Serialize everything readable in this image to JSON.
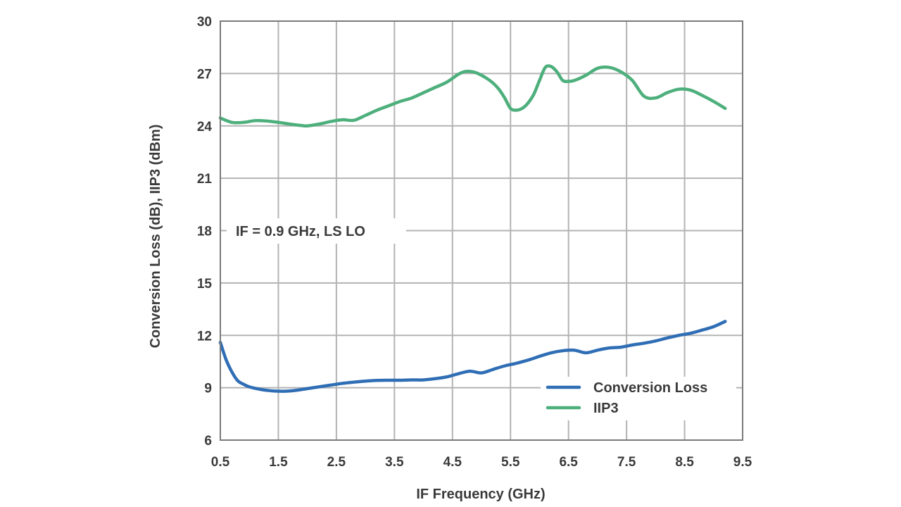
{
  "chart_data": {
    "type": "line",
    "title": "",
    "xlabel": "IF Frequency (GHz)",
    "ylabel": "Conversion Loss (dB), IIP3 (dBm)",
    "xlim": [
      0.5,
      9.5
    ],
    "ylim": [
      6,
      30
    ],
    "xticks": [
      "0.5",
      "1.5",
      "2.5",
      "3.5",
      "4.5",
      "5.5",
      "6.5",
      "7.5",
      "8.5",
      "9.5"
    ],
    "yticks": [
      "6",
      "9",
      "12",
      "15",
      "18",
      "21",
      "24",
      "27",
      "30"
    ],
    "grid": true,
    "annotation": "IF = 0.9 GHz, LS LO",
    "legend": {
      "placement": "bottom-right"
    },
    "series": [
      {
        "name": "Conversion Loss",
        "color": "#2f6eb5",
        "x": [
          0.5,
          0.6,
          0.7,
          0.8,
          0.9,
          1.0,
          1.2,
          1.4,
          1.6,
          1.8,
          2.0,
          2.2,
          2.4,
          2.6,
          2.8,
          3.0,
          3.2,
          3.4,
          3.6,
          3.8,
          4.0,
          4.2,
          4.4,
          4.6,
          4.8,
          5.0,
          5.2,
          5.4,
          5.6,
          5.8,
          6.0,
          6.2,
          6.4,
          6.6,
          6.8,
          7.0,
          7.2,
          7.4,
          7.6,
          7.8,
          8.0,
          8.2,
          8.4,
          8.6,
          8.8,
          9.0,
          9.2
        ],
        "values": [
          11.6,
          10.6,
          9.9,
          9.4,
          9.2,
          9.05,
          8.9,
          8.82,
          8.8,
          8.85,
          8.95,
          9.05,
          9.15,
          9.25,
          9.32,
          9.38,
          9.42,
          9.43,
          9.43,
          9.45,
          9.45,
          9.52,
          9.62,
          9.8,
          9.95,
          9.85,
          10.05,
          10.25,
          10.4,
          10.58,
          10.8,
          11.0,
          11.12,
          11.15,
          11.0,
          11.15,
          11.28,
          11.32,
          11.45,
          11.55,
          11.68,
          11.85,
          12.0,
          12.12,
          12.3,
          12.5,
          12.8
        ]
      },
      {
        "name": "IIP3",
        "color": "#4daf7c",
        "x": [
          0.5,
          0.7,
          0.9,
          1.1,
          1.3,
          1.5,
          1.7,
          1.9,
          2.0,
          2.2,
          2.4,
          2.6,
          2.8,
          3.0,
          3.2,
          3.4,
          3.6,
          3.8,
          4.0,
          4.2,
          4.4,
          4.6,
          4.7,
          4.8,
          4.9,
          5.0,
          5.1,
          5.2,
          5.3,
          5.4,
          5.5,
          5.6,
          5.7,
          5.8,
          5.9,
          6.0,
          6.1,
          6.2,
          6.3,
          6.4,
          6.5,
          6.6,
          6.8,
          7.0,
          7.2,
          7.4,
          7.6,
          7.8,
          8.0,
          8.2,
          8.4,
          8.6,
          8.8,
          9.0,
          9.2
        ],
        "values": [
          24.45,
          24.2,
          24.2,
          24.3,
          24.28,
          24.2,
          24.1,
          24.02,
          24.0,
          24.1,
          24.25,
          24.35,
          24.32,
          24.6,
          24.9,
          25.15,
          25.4,
          25.6,
          25.9,
          26.2,
          26.5,
          26.95,
          27.1,
          27.12,
          27.05,
          26.9,
          26.7,
          26.45,
          26.1,
          25.6,
          25.0,
          24.9,
          25.0,
          25.3,
          25.8,
          26.6,
          27.35,
          27.4,
          27.1,
          26.6,
          26.55,
          26.6,
          26.9,
          27.3,
          27.35,
          27.1,
          26.6,
          25.7,
          25.6,
          25.9,
          26.1,
          26.05,
          25.75,
          25.4,
          25.0
        ]
      }
    ]
  }
}
